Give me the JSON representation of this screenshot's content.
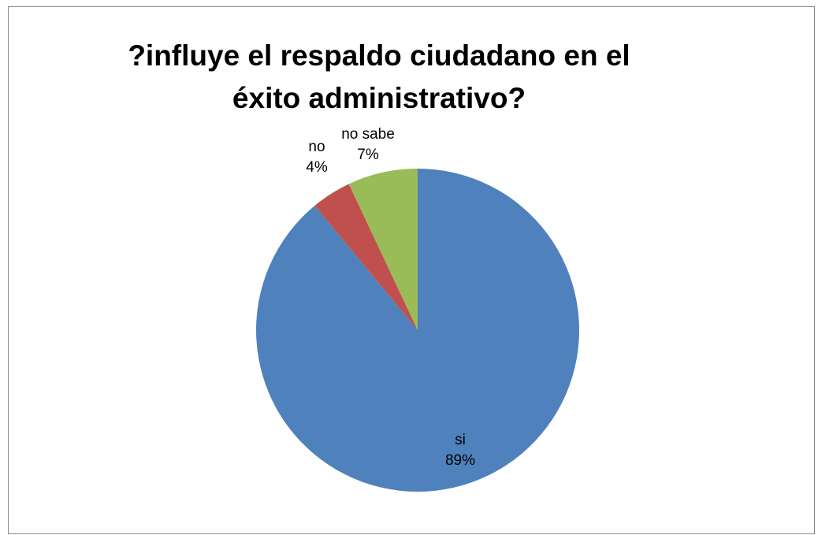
{
  "chart_data": {
    "type": "pie",
    "title": "?influye  el respaldo ciudadano en el\néxito administrativo?",
    "categories": [
      "si",
      "no",
      "no sabe"
    ],
    "values": [
      89,
      4,
      7
    ],
    "percent_labels": [
      "89%",
      "4%",
      "7%"
    ],
    "colors": [
      "#4f81bd",
      "#c0504d",
      "#9bbb59"
    ],
    "start_angle_deg": 0,
    "direction": "clockwise",
    "legend": "none"
  }
}
